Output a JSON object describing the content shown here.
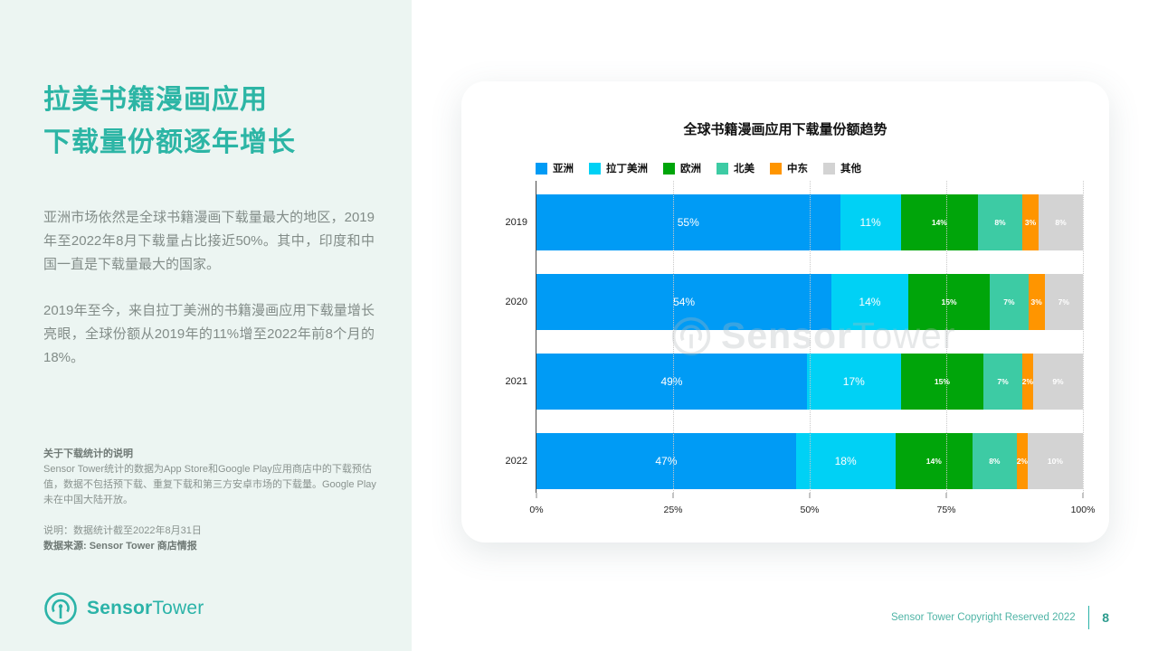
{
  "left_panel": {
    "title_lines": [
      "拉美书籍漫画应用",
      "下载量份额逐年增长"
    ],
    "paragraphs": [
      "亚洲市场依然是全球书籍漫画下载量最大的地区，2019年至2022年8月下载量占比接近50%。其中，印度和中国一直是下载量最大的国家。",
      "2019年至今，来自拉丁美洲的书籍漫画应用下载量增长亮眼，全球份额从2019年的11%增至2022年前8个月的18%。"
    ],
    "note_title": "关于下载统计的说明",
    "note_body": "Sensor Tower统计的数据为App Store和Google Play应用商店中的下载预估值，数据不包括预下载、重复下载和第三方安卓市场的下载量。Google Play未在中国大陆开放。",
    "note_meta": "说明：数据统计截至2022年8月31日",
    "note_source": "数据来源: Sensor Tower 商店情报",
    "logo": {
      "bold": "Sensor",
      "regular": "Tower"
    }
  },
  "chart_data": {
    "type": "bar",
    "orientation": "horizontal",
    "stacked": true,
    "title": "全球书籍漫画应用下载量份额趋势",
    "categories": [
      "2019",
      "2020",
      "2021",
      "2022"
    ],
    "series": [
      {
        "name": "亚洲",
        "color": "#009BF5",
        "values": [
          55,
          54,
          49,
          47
        ]
      },
      {
        "name": "拉丁美洲",
        "color": "#00D1F5",
        "values": [
          11,
          14,
          17,
          18
        ]
      },
      {
        "name": "欧洲",
        "color": "#00A50A",
        "values": [
          14,
          15,
          15,
          14
        ]
      },
      {
        "name": "北美",
        "color": "#3DCBA4",
        "values": [
          8,
          7,
          7,
          8
        ]
      },
      {
        "name": "中东",
        "color": "#FF9500",
        "values": [
          3,
          3,
          2,
          2
        ]
      },
      {
        "name": "其他",
        "color": "#D3D3D3",
        "values": [
          8,
          7,
          9,
          10
        ]
      }
    ],
    "value_suffix": "%",
    "x_ticks": [
      {
        "label": "0%",
        "value": 0
      },
      {
        "label": "25%",
        "value": 25
      },
      {
        "label": "50%",
        "value": 50
      },
      {
        "label": "75%",
        "value": 75
      },
      {
        "label": "100%",
        "value": 100
      }
    ],
    "xlim": [
      0,
      100
    ],
    "legend_position": "top-left",
    "grid": "dotted-vertical"
  },
  "watermark": {
    "bold": "Sensor",
    "regular": "Tower"
  },
  "footer": {
    "copyright": "Sensor Tower Copyright Reserved 2022",
    "page_number": "8"
  },
  "colors": {
    "accent_teal": "#2CB5A5",
    "panel_bg": "#ECF5F2",
    "body_text": "#828C88"
  }
}
